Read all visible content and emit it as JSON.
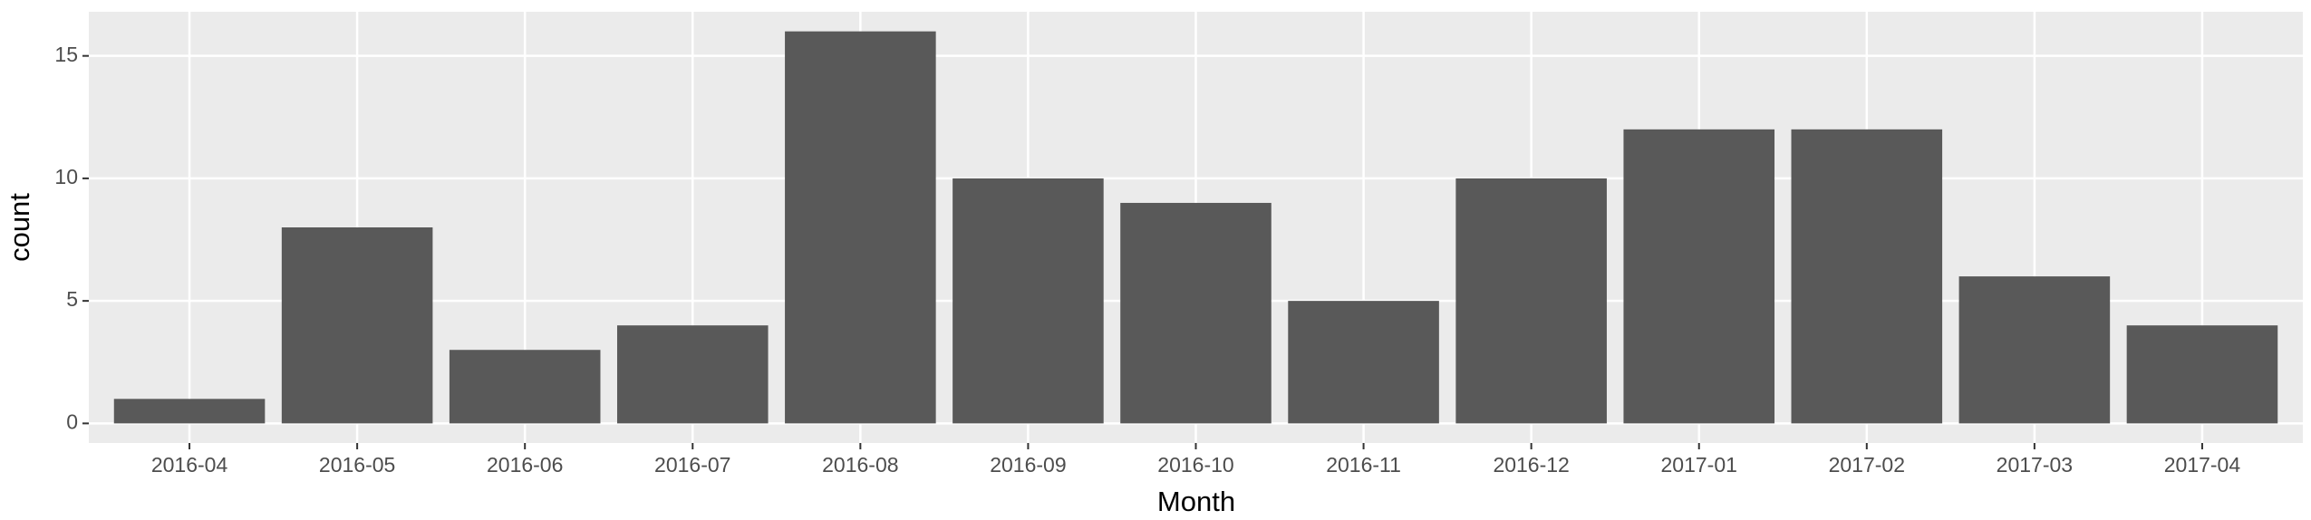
{
  "chart_data": {
    "type": "bar",
    "x_label": "Month",
    "y_label": "count",
    "categories": [
      "2016-04",
      "2016-05",
      "2016-06",
      "2016-07",
      "2016-08",
      "2016-09",
      "2016-10",
      "2016-11",
      "2016-12",
      "2017-01",
      "2017-02",
      "2017-03",
      "2017-04"
    ],
    "values": [
      1,
      8,
      3,
      4,
      16,
      10,
      9,
      5,
      10,
      12,
      12,
      6,
      4
    ],
    "color": "#595959",
    "ylim": [
      -0.8,
      16.8
    ],
    "yticks": [
      0,
      5,
      10,
      15
    ],
    "grid": true
  }
}
